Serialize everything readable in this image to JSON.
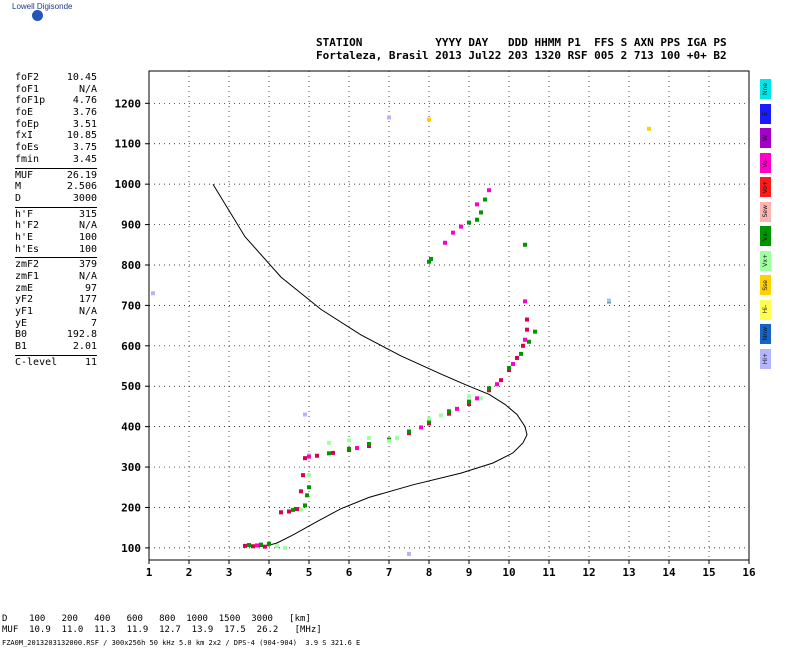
{
  "logo": {
    "text": "Lowell Digisonde",
    "icon": "globe-icon"
  },
  "header": {
    "line1": "STATION           YYYY DAY   DDD HHMM P1  FFS S AXN PPS IGA PS",
    "line2": "Fortaleza, Brasil 2013 Jul22 203 1320 RSF 005 2 713 100 +0+ B2"
  },
  "params": [
    {
      "k": "foF2",
      "v": "10.45"
    },
    {
      "k": "foF1",
      "v": "N/A"
    },
    {
      "k": "foF1p",
      "v": "4.76"
    },
    {
      "k": "foE",
      "v": "3.76"
    },
    {
      "k": "foEp",
      "v": "3.51"
    },
    {
      "k": "fxI",
      "v": "10.85"
    },
    {
      "k": "foEs",
      "v": "3.75"
    },
    {
      "k": "fmin",
      "v": "3.45"
    },
    {
      "k": "MUF",
      "v": "26.19"
    },
    {
      "k": "M",
      "v": "2.506"
    },
    {
      "k": "D",
      "v": "3000"
    },
    {
      "k": "h'F",
      "v": "315"
    },
    {
      "k": "h'F2",
      "v": "N/A"
    },
    {
      "k": "h'E",
      "v": "100"
    },
    {
      "k": "h'Es",
      "v": "100"
    },
    {
      "k": "zmF2",
      "v": "379"
    },
    {
      "k": "zmF1",
      "v": "N/A"
    },
    {
      "k": "zmE",
      "v": "97"
    },
    {
      "k": "yF2",
      "v": "177"
    },
    {
      "k": "yF1",
      "v": "N/A"
    },
    {
      "k": "yE",
      "v": "7"
    },
    {
      "k": "B0",
      "v": "192.8"
    },
    {
      "k": "B1",
      "v": "2.01"
    },
    {
      "k": "C-level",
      "v": "11"
    }
  ],
  "legend": [
    {
      "label": "Nne",
      "color": "#00e6e6"
    },
    {
      "label": "E",
      "color": "#1a1aff"
    },
    {
      "label": "W",
      "color": "#a000c8"
    },
    {
      "label": "Vo-",
      "color": "#ff00c8"
    },
    {
      "label": "Vo+",
      "color": "#ff1a1a"
    },
    {
      "label": "Sew",
      "color": "#ffb4b4"
    },
    {
      "label": "Vx-",
      "color": "#009600"
    },
    {
      "label": "Vx+",
      "color": "#a0ffa0"
    },
    {
      "label": "Sse",
      "color": "#ffd200"
    },
    {
      "label": "Hi-",
      "color": "#ffff50"
    },
    {
      "label": "Nnw",
      "color": "#1464c8"
    },
    {
      "label": "Hi+",
      "color": "#b4b4ff"
    }
  ],
  "chart_data": {
    "type": "scatter",
    "xlim": [
      1,
      16
    ],
    "ylim": [
      70,
      1280
    ],
    "xticks": [
      "1",
      "2",
      "3",
      "4",
      "5",
      "6",
      "7",
      "8",
      "9",
      "10",
      "11",
      "12",
      "13",
      "14",
      "15",
      "16"
    ],
    "yticks": [
      "100",
      "200",
      "300",
      "400",
      "500",
      "600",
      "700",
      "800",
      "900",
      "1000",
      "1100",
      "1200"
    ],
    "grid": true,
    "series": [
      {
        "color": "#dc0050",
        "points": [
          [
            3.4,
            105
          ],
          [
            3.6,
            104
          ],
          [
            3.9,
            103
          ],
          [
            4.3,
            188
          ],
          [
            4.5,
            190
          ],
          [
            4.7,
            196
          ],
          [
            4.8,
            240
          ],
          [
            4.85,
            280
          ],
          [
            4.9,
            322
          ],
          [
            5.2,
            328
          ],
          [
            5.6,
            335
          ],
          [
            6.0,
            342
          ],
          [
            6.5,
            352
          ],
          [
            7.0,
            366
          ],
          [
            7.5,
            384
          ],
          [
            8.0,
            408
          ],
          [
            8.5,
            432
          ],
          [
            9.0,
            456
          ],
          [
            9.5,
            490
          ],
          [
            9.8,
            515
          ],
          [
            10.0,
            540
          ],
          [
            10.2,
            570
          ],
          [
            10.35,
            600
          ],
          [
            10.45,
            640
          ],
          [
            10.45,
            665
          ]
        ]
      },
      {
        "color": "#009600",
        "points": [
          [
            3.5,
            107
          ],
          [
            3.8,
            108
          ],
          [
            4.0,
            110
          ],
          [
            4.6,
            194
          ],
          [
            4.9,
            205
          ],
          [
            4.95,
            230
          ],
          [
            5.0,
            250
          ],
          [
            5.5,
            334
          ],
          [
            6.0,
            345
          ],
          [
            6.5,
            357
          ],
          [
            7.0,
            368
          ],
          [
            7.5,
            388
          ],
          [
            8.0,
            412
          ],
          [
            8.5,
            438
          ],
          [
            9.0,
            462
          ],
          [
            9.5,
            495
          ],
          [
            10.0,
            545
          ],
          [
            10.3,
            580
          ],
          [
            10.5,
            610
          ],
          [
            10.65,
            635
          ]
        ]
      },
      {
        "color": "#a0ffa0",
        "points": [
          [
            4.2,
            104
          ],
          [
            4.4,
            100
          ],
          [
            4.8,
            195
          ],
          [
            5.0,
            280
          ],
          [
            5.0,
            330
          ],
          [
            5.5,
            360
          ],
          [
            6.0,
            366
          ],
          [
            6.5,
            372
          ],
          [
            7.0,
            364
          ],
          [
            7.2,
            372
          ],
          [
            8.0,
            420
          ],
          [
            8.3,
            428
          ],
          [
            9.0,
            475
          ],
          [
            9.3,
            470
          ]
        ]
      },
      {
        "color": "#ff00c8",
        "points": [
          [
            3.7,
            106
          ],
          [
            5.0,
            326
          ],
          [
            6.2,
            347
          ],
          [
            7.8,
            398
          ],
          [
            8.7,
            444
          ],
          [
            9.2,
            470
          ],
          [
            9.7,
            505
          ],
          [
            10.1,
            555
          ],
          [
            10.4,
            615
          ],
          [
            8.4,
            855
          ],
          [
            8.6,
            880
          ],
          [
            8.8,
            895
          ],
          [
            9.2,
            950
          ],
          [
            9.5,
            985
          ],
          [
            10.4,
            710
          ]
        ]
      },
      {
        "color": "#009600",
        "points": [
          [
            8.0,
            808
          ],
          [
            8.05,
            815
          ],
          [
            9.0,
            905
          ],
          [
            9.2,
            912
          ],
          [
            9.3,
            930
          ],
          [
            9.4,
            962
          ],
          [
            10.4,
            850
          ],
          [
            12.5,
            710
          ]
        ]
      },
      {
        "color": "#b4b4ff",
        "points": [
          [
            1.1,
            730
          ],
          [
            4.9,
            430
          ],
          [
            12.5,
            712
          ],
          [
            7.0,
            1165
          ],
          [
            7.5,
            85
          ]
        ]
      },
      {
        "color": "#ffd200",
        "points": [
          [
            13.5,
            1137
          ],
          [
            8.0,
            1160
          ]
        ]
      }
    ],
    "profile": [
      [
        2.6,
        1000
      ],
      [
        3.4,
        870
      ],
      [
        4.3,
        770
      ],
      [
        5.3,
        690
      ],
      [
        6.3,
        627
      ],
      [
        7.3,
        575
      ],
      [
        8.3,
        530
      ],
      [
        9.0,
        500
      ],
      [
        9.5,
        480
      ],
      [
        9.9,
        455
      ],
      [
        10.2,
        430
      ],
      [
        10.4,
        400
      ],
      [
        10.45,
        380
      ],
      [
        10.35,
        360
      ],
      [
        10.1,
        335
      ],
      [
        9.6,
        310
      ],
      [
        8.8,
        285
      ],
      [
        7.6,
        256
      ],
      [
        6.5,
        225
      ],
      [
        5.8,
        197
      ],
      [
        5.2,
        165
      ],
      [
        4.6,
        132
      ],
      [
        4.2,
        112
      ],
      [
        3.9,
        104
      ],
      [
        3.6,
        103
      ]
    ]
  },
  "bottom": {
    "d_row": "D    100   200   400   600   800  1000  1500  3000   [km]",
    "muf_row": "MUF  10.9  11.0  11.3  11.9  12.7  13.9  17.5  26.2   [MHz]",
    "file_row": "FZA0M_2013203132000.RSF / 300x256h 50 kHz 5.0 km 2x2 / DPS-4 (904-904)  3.9 S 321.6 E"
  }
}
